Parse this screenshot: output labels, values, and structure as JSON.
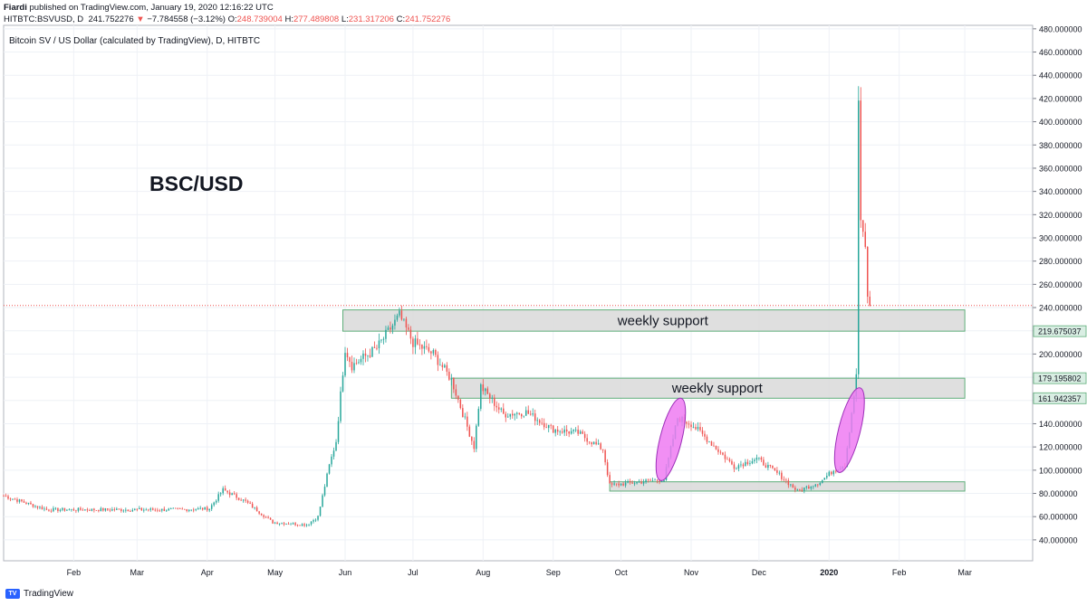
{
  "header": {
    "author": "Fiardi",
    "published": "published on TradingView.com, January 19, 2020 12:16:22 UTC",
    "symbol": "HITBTC:BSVUSD, D",
    "last_price": "241.752276",
    "change_arrow": "▼",
    "change": "−7.784558 (−3.12%)",
    "o_label": "O:",
    "o_value": "248.739004",
    "h_label": "H:",
    "h_value": "277.489808",
    "l_label": "L:",
    "l_value": "231.317206",
    "c_label": "C:",
    "c_value": "241.752276"
  },
  "footer": {
    "brand": "TradingView",
    "logo_icon": "tradingview-logo-icon"
  },
  "colors": {
    "up": "#26a69a",
    "down": "#ef5350",
    "zone_fill": "#d9d9d9",
    "zone_border": "#5fae7a",
    "ellipse_fill": "#ee7bf2",
    "ellipse_stroke": "#9c2fb8",
    "price_line": "#ef5350",
    "grid": "#eef1f6"
  },
  "chart_data": {
    "type": "candlestick",
    "title": "Bitcoin SV / US Dollar (calculated by TradingView), D, HITBTC",
    "annotation_title": "BSC/USD",
    "xlabel": "",
    "ylabel": "",
    "grid": true,
    "current_price_line": 241.752276,
    "x_ticks": [
      "Feb",
      "Mar",
      "Apr",
      "May",
      "Jun",
      "Jul",
      "Aug",
      "Sep",
      "Oct",
      "Nov",
      "Dec",
      "2020",
      "Feb",
      "Mar"
    ],
    "y_ticks": [
      "40.000000",
      "60.000000",
      "80.000000",
      "100.000000",
      "120.000000",
      "140.000000",
      "160.000000",
      "180.000000",
      "200.000000",
      "220.000000",
      "240.000000",
      "260.000000",
      "280.000000",
      "300.000000",
      "320.000000",
      "340.000000",
      "360.000000",
      "380.000000",
      "400.000000",
      "420.000000",
      "440.000000",
      "460.000000",
      "480.000000"
    ],
    "ylim": [
      22,
      483
    ],
    "x_range": [
      "2019-01-01",
      "2020-03-31"
    ],
    "price_labels": [
      {
        "value": 219.675037,
        "text": "219.675037"
      },
      {
        "value": 179.195802,
        "text": "179.195802"
      },
      {
        "value": 161.942357,
        "text": "161.942357"
      }
    ],
    "zones": [
      {
        "label": "weekly support",
        "date_start": "2019-05-31",
        "date_end": "2020-03-01",
        "low": 219.675037,
        "high": 238
      },
      {
        "label": "weekly support",
        "date_start": "2019-07-18",
        "date_end": "2020-03-01",
        "low": 161.942357,
        "high": 179.195802
      },
      {
        "label": "",
        "date_start": "2019-09-26",
        "date_end": "2020-03-01",
        "low": 82,
        "high": 90
      }
    ],
    "highlights": [
      {
        "date": "2019-10-23",
        "low": 90,
        "high": 163
      },
      {
        "date": "2020-01-10",
        "low": 97,
        "high": 172
      }
    ],
    "anchors": [
      {
        "date": "2019-01-01",
        "price": 78
      },
      {
        "date": "2019-01-20",
        "price": 66
      },
      {
        "date": "2019-02-20",
        "price": 66
      },
      {
        "date": "2019-03-20",
        "price": 66
      },
      {
        "date": "2019-04-02",
        "price": 67
      },
      {
        "date": "2019-04-08",
        "price": 83
      },
      {
        "date": "2019-04-18",
        "price": 73
      },
      {
        "date": "2019-04-30",
        "price": 55
      },
      {
        "date": "2019-05-15",
        "price": 53
      },
      {
        "date": "2019-05-20",
        "price": 60
      },
      {
        "date": "2019-05-25",
        "price": 104
      },
      {
        "date": "2019-05-28",
        "price": 125
      },
      {
        "date": "2019-06-01",
        "price": 205
      },
      {
        "date": "2019-06-04",
        "price": 190
      },
      {
        "date": "2019-06-15",
        "price": 205
      },
      {
        "date": "2019-06-25",
        "price": 233
      },
      {
        "date": "2019-07-01",
        "price": 210
      },
      {
        "date": "2019-07-10",
        "price": 200
      },
      {
        "date": "2019-07-18",
        "price": 178
      },
      {
        "date": "2019-07-28",
        "price": 120
      },
      {
        "date": "2019-07-31",
        "price": 172
      },
      {
        "date": "2019-08-10",
        "price": 148
      },
      {
        "date": "2019-08-20",
        "price": 150
      },
      {
        "date": "2019-09-01",
        "price": 135
      },
      {
        "date": "2019-09-12",
        "price": 132
      },
      {
        "date": "2019-09-23",
        "price": 118
      },
      {
        "date": "2019-09-26",
        "price": 87
      },
      {
        "date": "2019-10-10",
        "price": 90
      },
      {
        "date": "2019-10-20",
        "price": 92
      },
      {
        "date": "2019-10-26",
        "price": 145
      },
      {
        "date": "2019-11-01",
        "price": 140
      },
      {
        "date": "2019-11-10",
        "price": 123
      },
      {
        "date": "2019-11-20",
        "price": 103
      },
      {
        "date": "2019-11-30",
        "price": 110
      },
      {
        "date": "2019-12-10",
        "price": 96
      },
      {
        "date": "2019-12-18",
        "price": 82
      },
      {
        "date": "2019-12-28",
        "price": 90
      },
      {
        "date": "2020-01-03",
        "price": 100
      },
      {
        "date": "2020-01-08",
        "price": 105
      },
      {
        "date": "2020-01-12",
        "price": 165
      },
      {
        "date": "2020-01-13",
        "price": 180
      },
      {
        "date": "2020-01-14",
        "price": 419
      },
      {
        "date": "2020-01-15",
        "price": 315
      },
      {
        "date": "2020-01-16",
        "price": 300
      },
      {
        "date": "2020-01-17",
        "price": 290
      },
      {
        "date": "2020-01-18",
        "price": 251
      },
      {
        "date": "2020-01-19",
        "price": 241.75
      }
    ]
  }
}
